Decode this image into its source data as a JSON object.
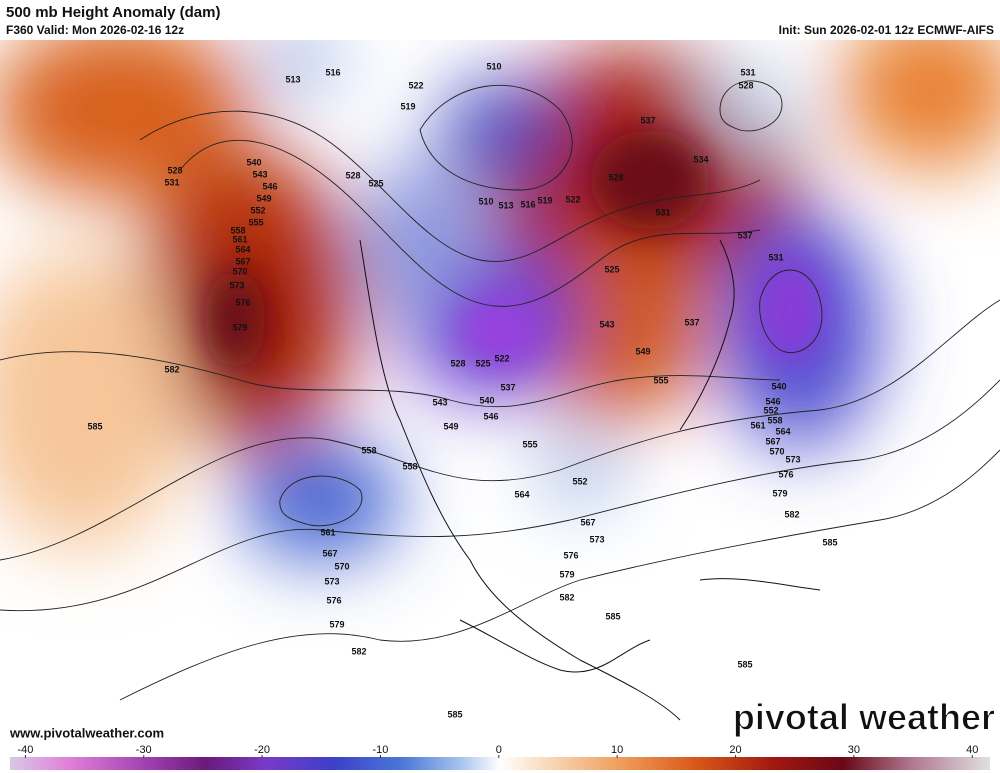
{
  "header": {
    "title": "500 mb Height Anomaly (dam)",
    "valid": "F360 Valid: Mon 2026-02-16 12z",
    "init": "Init: Sun 2026-02-01 12z ECMWF-AIFS"
  },
  "footer": {
    "website": "www.pivotalweather.com",
    "logo": "pivotal weather"
  },
  "colorbar": {
    "lim": [
      -41.3,
      41.5
    ],
    "ticks": [
      -40,
      -30,
      -20,
      -10,
      0,
      10,
      20,
      30,
      40
    ]
  },
  "contour_labels": [
    582,
    585,
    579,
    576,
    573,
    570,
    567,
    564,
    561,
    558,
    555,
    552,
    549,
    546,
    543,
    540,
    528,
    531,
    522,
    519,
    516,
    513,
    510,
    531,
    528,
    537,
    534,
    531,
    537,
    531,
    540,
    546,
    552,
    558,
    561,
    564,
    567,
    570,
    573,
    576,
    579,
    582,
    585,
    585,
    585,
    585,
    582,
    579,
    576,
    573,
    570,
    567,
    561,
    558,
    558,
    555,
    552,
    564,
    567,
    573,
    576,
    579,
    582,
    549,
    546,
    543,
    540,
    537,
    528,
    525,
    522,
    525,
    528,
    543,
    549,
    555,
    537,
    525,
    528,
    522,
    519,
    516,
    513,
    510
  ]
}
